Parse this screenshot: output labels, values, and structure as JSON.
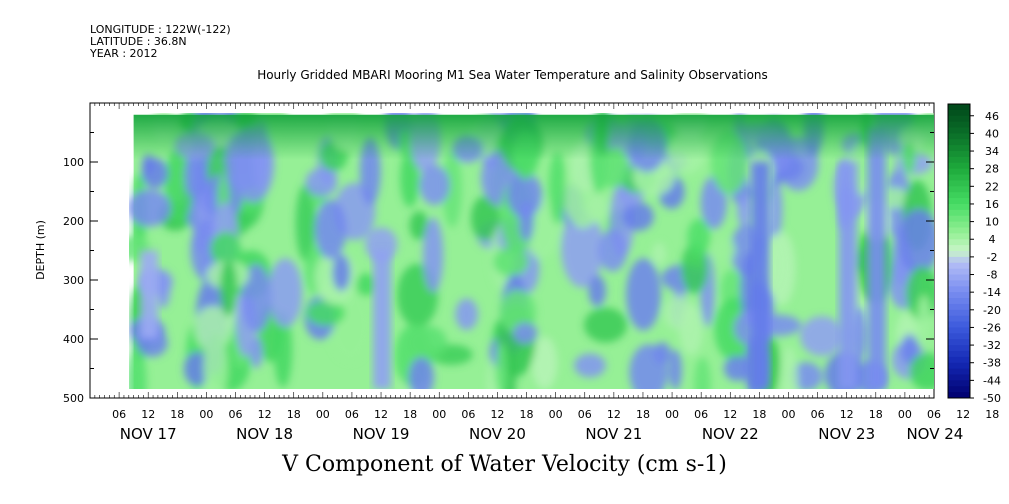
{
  "header": {
    "longitude": "LONGITUDE : 122W(-122)",
    "latitude": "LATITUDE : 36.8N",
    "year": "YEAR : 2012"
  },
  "chart_data": {
    "type": "heatmap",
    "title": "Hourly Gridded MBARI Mooring M1 Sea Water Temperature and Salinity Observations",
    "xlabel": "V Component of Water Velocity (cm s-1)",
    "ylabel": "DEPTH (m)",
    "ylim": [
      500,
      0
    ],
    "data_depth_range": [
      20,
      485
    ],
    "y_ticks": [
      100,
      200,
      300,
      400,
      500
    ],
    "y_tick_labels": [
      "100",
      "200",
      "300",
      "400",
      "500"
    ],
    "x_start": "NOV 17 00",
    "x_end": "NOV 24 06",
    "data_start": "NOV 17 09",
    "hour_tick_labels": [
      "06",
      "12",
      "18",
      "00",
      "06",
      "12",
      "18",
      "00",
      "06",
      "12",
      "18",
      "00",
      "06",
      "12",
      "18",
      "00",
      "06",
      "12",
      "18",
      "00",
      "06",
      "12",
      "18",
      "00",
      "06",
      "12",
      "18",
      "00",
      "06",
      "12",
      "18",
      "00",
      "06"
    ],
    "day_labels": [
      "NOV 17",
      "NOV 18",
      "NOV 19",
      "NOV 20",
      "NOV 21",
      "NOV 22",
      "NOV 23",
      "NOV 24"
    ],
    "colorbar": {
      "levels": [
        46,
        40,
        34,
        28,
        22,
        16,
        10,
        4,
        -2,
        -8,
        -14,
        -20,
        -26,
        -32,
        -38,
        -44,
        -50
      ],
      "labels": [
        "46",
        "40",
        "34",
        "28",
        "22",
        "16",
        "10",
        "4",
        "-2",
        "-8",
        "-14",
        "-20",
        "-26",
        "-32",
        "-38",
        "-44",
        "-50"
      ],
      "range": [
        -50,
        50
      ]
    },
    "value_range_shown": [
      -20,
      46
    ],
    "features": [
      {
        "time": "NOV 22 18",
        "depth_range": [
          100,
          485
        ],
        "value": -18
      },
      {
        "time": "NOV 23 12",
        "depth_range": [
          100,
          485
        ],
        "value": -12
      },
      {
        "time": "NOV 23 18",
        "depth_range": [
          40,
          485
        ],
        "value": -14
      },
      {
        "time": "NOV 19 12",
        "depth_range": [
          250,
          485
        ],
        "value": -10
      },
      {
        "time": "NOV 17 12",
        "depth_range": [
          250,
          400
        ],
        "value": -8
      }
    ]
  }
}
